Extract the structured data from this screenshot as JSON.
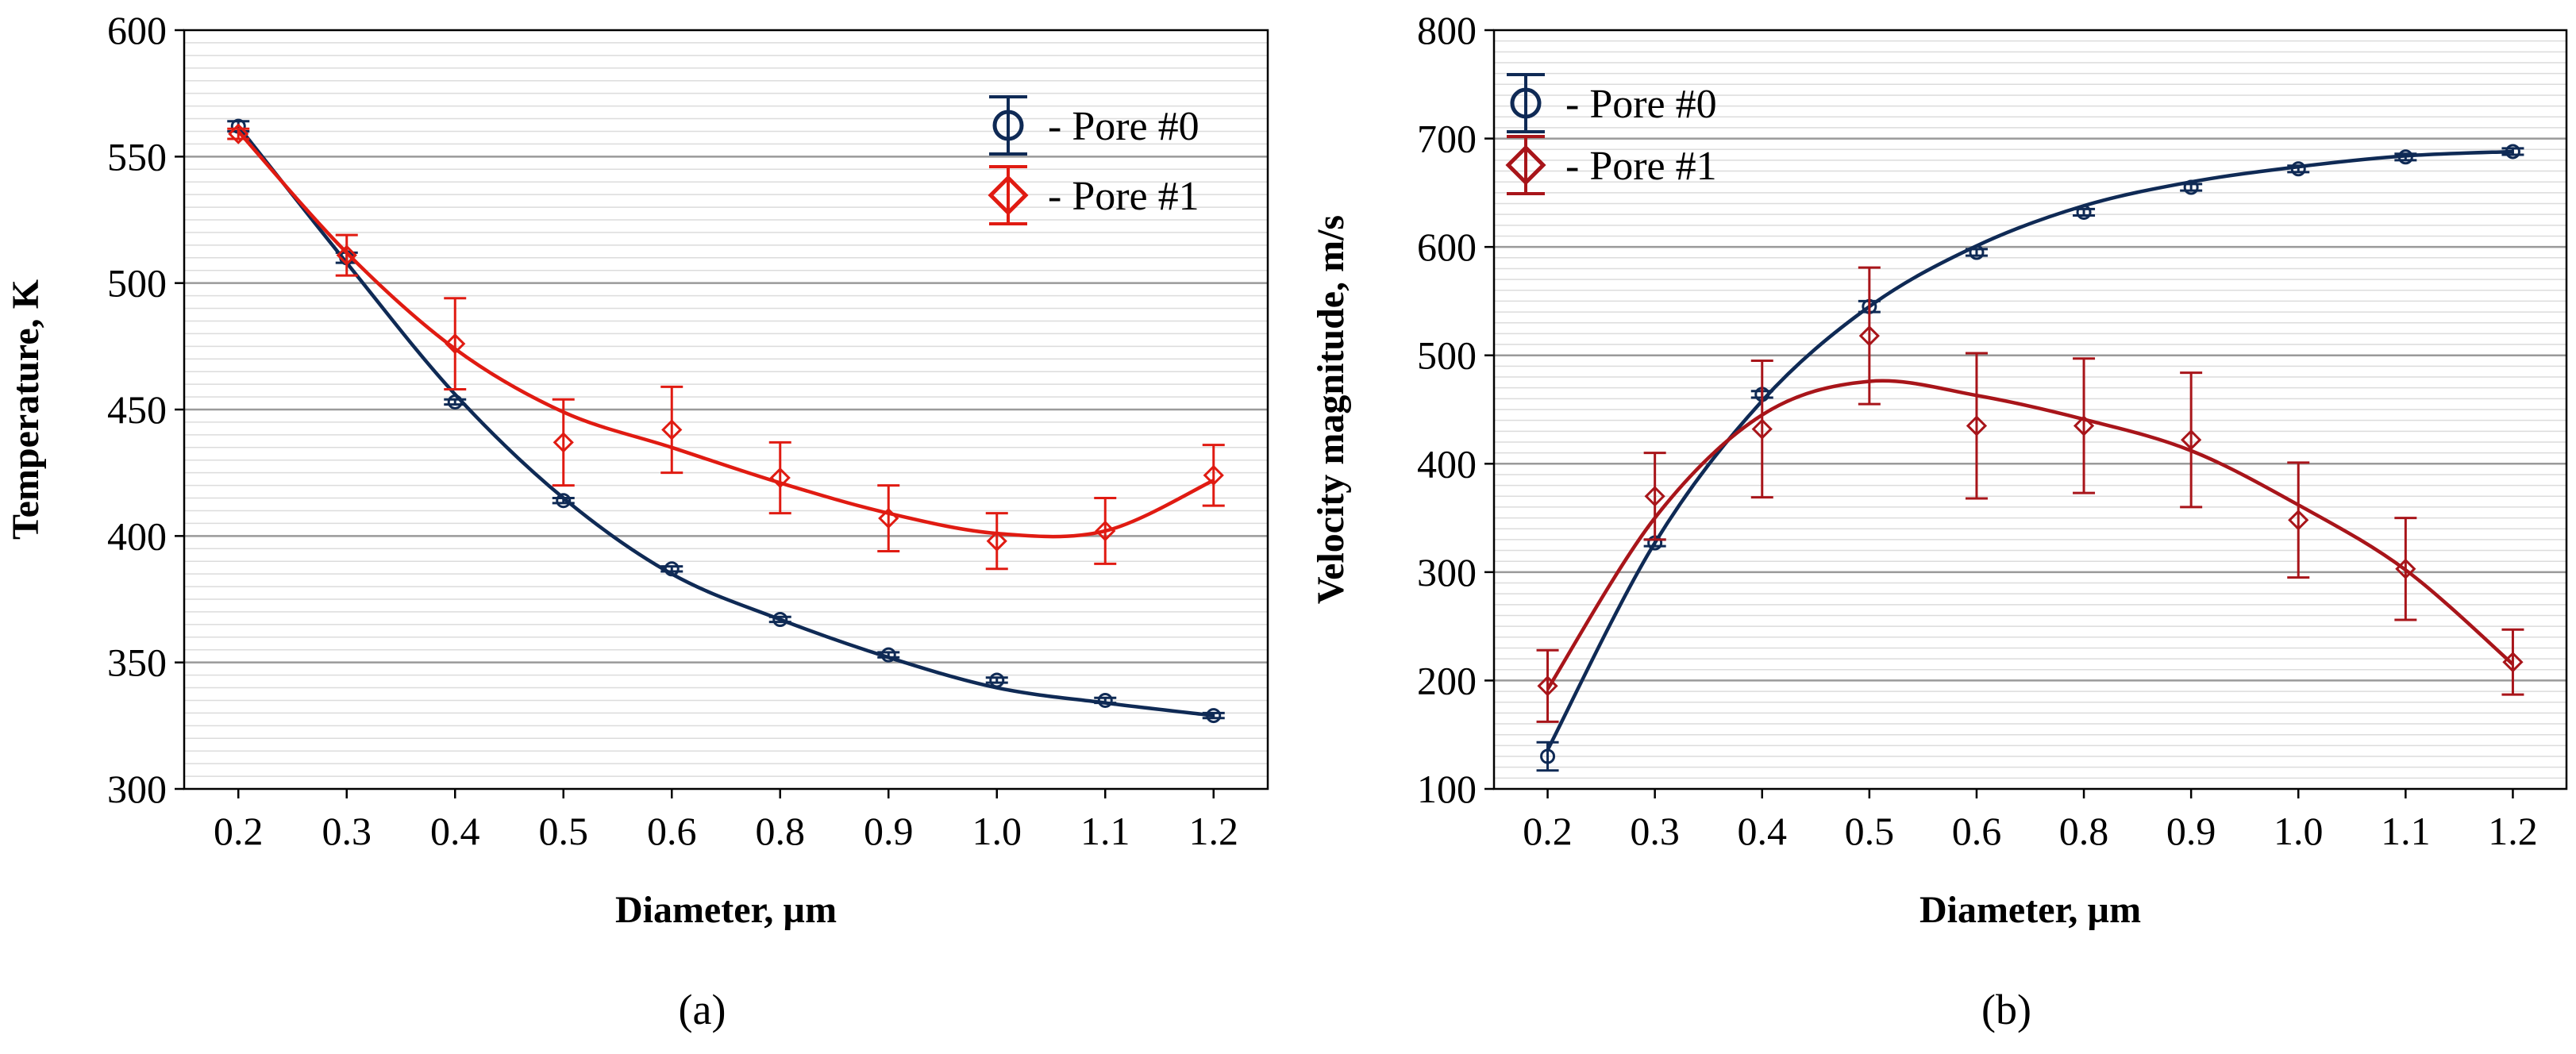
{
  "colors": {
    "pore0": "#0f2a55",
    "pore1_left": "#e01b12",
    "pore1_right": "#a8151a",
    "grid_major": "#9a9a9a",
    "grid_minor": "#dcdcdc"
  },
  "chart_data": [
    {
      "type": "line",
      "panel_label": "(a)",
      "title": "",
      "xlabel": "Diameter, µm",
      "ylabel": "Temperature, K",
      "categories": [
        "0.2",
        "0.3",
        "0.4",
        "0.5",
        "0.6",
        "0.8",
        "0.9",
        "1.0",
        "1.1",
        "1.2"
      ],
      "ylim": [
        300,
        600
      ],
      "yticks": [
        300,
        350,
        400,
        450,
        500,
        550,
        600
      ],
      "ytick_labels": [
        "300",
        "350",
        "400",
        "450",
        "500",
        "550",
        "600"
      ],
      "grid": true,
      "legend_position": "top-right",
      "series": [
        {
          "name": "- Pore #0",
          "marker": "circle",
          "color_key": "pore0",
          "values": [
            562,
            510,
            453,
            414,
            387,
            367,
            353,
            343,
            335,
            329
          ],
          "errors": [
            2,
            2,
            1,
            1,
            1,
            1,
            1,
            1,
            1,
            1
          ],
          "fit": [
            562,
            508,
            456,
            415,
            385,
            367,
            352,
            340,
            334,
            329
          ]
        },
        {
          "name": "- Pore #1",
          "marker": "diamond",
          "color_key": "pore1_left",
          "values": [
            559,
            511,
            476,
            437,
            442,
            423,
            407,
            398,
            402,
            424
          ],
          "errors": [
            2,
            8,
            18,
            17,
            17,
            14,
            13,
            11,
            13,
            12
          ],
          "fit": [
            560,
            512,
            474,
            449,
            435,
            421,
            409,
            401,
            402,
            422
          ]
        }
      ]
    },
    {
      "type": "line",
      "panel_label": "(b)",
      "title": "",
      "xlabel": "Diameter, µm",
      "ylabel": "Velocity magnitude, m/s",
      "categories": [
        "0.2",
        "0.3",
        "0.4",
        "0.5",
        "0.6",
        "0.8",
        "0.9",
        "1.0",
        "1.1",
        "1.2"
      ],
      "ylim": [
        100,
        800
      ],
      "yticks": [
        100,
        200,
        300,
        400,
        500,
        600,
        700,
        800
      ],
      "ytick_labels": [
        "100",
        "200",
        "300",
        "400",
        "500",
        "600",
        "700",
        "800"
      ],
      "grid": true,
      "legend_position": "top-left",
      "series": [
        {
          "name": "- Pore #0",
          "marker": "circle",
          "color_key": "pore0",
          "values": [
            130,
            327,
            464,
            545,
            595,
            632,
            655,
            672,
            683,
            688
          ],
          "errors": [
            13,
            3,
            3,
            5,
            3,
            3,
            3,
            3,
            3,
            3
          ],
          "fit": [
            136,
            327,
            458,
            545,
            601,
            638,
            660,
            674,
            684,
            688
          ]
        },
        {
          "name": "- Pore #1",
          "marker": "diamond",
          "color_key": "pore1_right",
          "values": [
            195,
            370,
            432,
            518,
            435,
            435,
            422,
            348,
            303,
            217
          ],
          "errors": [
            33,
            40,
            63,
            63,
            67,
            62,
            62,
            53,
            47,
            30
          ],
          "fit": [
            192,
            350,
            445,
            476,
            463,
            441,
            412,
            362,
            302,
            215
          ]
        }
      ]
    }
  ]
}
